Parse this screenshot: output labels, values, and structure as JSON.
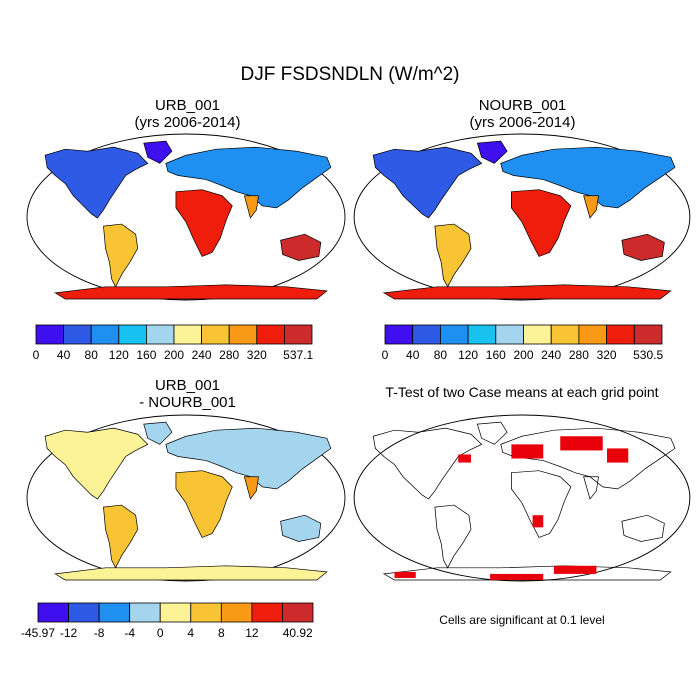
{
  "title": "DJF FSDSNDLN (W/m^2)",
  "panels": [
    {
      "id": "urb",
      "title_line1": "URB_001",
      "title_line2": "(yrs 2006-2014)"
    },
    {
      "id": "nourb",
      "title_line1": "NOURB_001",
      "title_line2": "(yrs 2006-2014)"
    },
    {
      "id": "diff",
      "title_line1": "URB_001",
      "title_line2": "- NOURB_001"
    },
    {
      "id": "ttest",
      "title_line1": "T-Test of two Case means at each grid point",
      "title_line2": ""
    }
  ],
  "colorbars": [
    {
      "id": "cb-urb",
      "labels": [
        "0",
        "40",
        "80",
        "120",
        "160",
        "200",
        "240",
        "280",
        "320",
        "537.1"
      ],
      "colors": [
        "#3f0ff0",
        "#2e5ae6",
        "#1f8ff2",
        "#18c2f0",
        "#a3d6ee",
        "#fbf396",
        "#f9c433",
        "#f89a16",
        "#ef1e0c",
        "#cd2b2b"
      ]
    },
    {
      "id": "cb-nourb",
      "labels": [
        "0",
        "40",
        "80",
        "120",
        "160",
        "200",
        "240",
        "280",
        "320",
        "530.5"
      ],
      "colors": [
        "#3f0ff0",
        "#2e5ae6",
        "#1f8ff2",
        "#18c2f0",
        "#a3d6ee",
        "#fbf396",
        "#f9c433",
        "#f89a16",
        "#ef1e0c",
        "#cd2b2b"
      ]
    },
    {
      "id": "cb-diff",
      "labels": [
        "-45.97",
        "-12",
        "-8",
        "-4",
        "0",
        "4",
        "8",
        "12",
        "40.92"
      ],
      "colors": [
        "#3f0ff0",
        "#2e5ae6",
        "#1f8ff2",
        "#a3d6ee",
        "#fbf396",
        "#f9c433",
        "#f89a16",
        "#ef1e0c",
        "#cd2b2b"
      ]
    }
  ],
  "note": "Cells are significant at 0.1 level",
  "chart_data": [
    {
      "type": "heatmap",
      "title": "URB_001 (yrs 2006-2014)",
      "variable": "FSDSNDLN",
      "season": "DJF",
      "units": "W/m^2",
      "colorbar_min": 0,
      "colorbar_max": 537.1,
      "levels": [
        40,
        80,
        120,
        160,
        200,
        240,
        280,
        320
      ]
    },
    {
      "type": "heatmap",
      "title": "NOURB_001 (yrs 2006-2014)",
      "variable": "FSDSNDLN",
      "season": "DJF",
      "units": "W/m^2",
      "colorbar_min": 0,
      "colorbar_max": 530.5,
      "levels": [
        40,
        80,
        120,
        160,
        200,
        240,
        280,
        320
      ]
    },
    {
      "type": "heatmap",
      "title": "URB_001 - NOURB_001",
      "variable": "FSDSNDLN",
      "season": "DJF",
      "units": "W/m^2",
      "colorbar_min": -45.97,
      "colorbar_max": 40.92,
      "levels": [
        -12,
        -8,
        -4,
        0,
        4,
        8,
        12
      ]
    },
    {
      "type": "heatmap",
      "title": "T-Test of two Case means at each grid point",
      "significance_level": 0.1,
      "significant_color": "#e8000a"
    }
  ]
}
